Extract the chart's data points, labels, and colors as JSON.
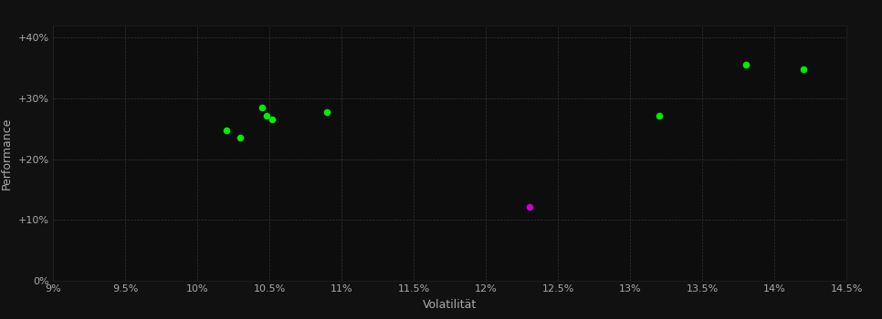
{
  "background_color": "#111111",
  "plot_bg_color": "#0d0d0d",
  "grid_color": "#333333",
  "text_color": "#aaaaaa",
  "xlabel": "Volatilität",
  "ylabel": "Performance",
  "xlim": [
    0.09,
    0.145
  ],
  "ylim": [
    0.0,
    0.42
  ],
  "xticks": [
    0.09,
    0.095,
    0.1,
    0.105,
    0.11,
    0.115,
    0.12,
    0.125,
    0.13,
    0.135,
    0.14,
    0.145
  ],
  "yticks": [
    0.0,
    0.1,
    0.2,
    0.3,
    0.4
  ],
  "ytick_labels": [
    "0%",
    "+10%",
    "+20%",
    "+30%",
    "+40%"
  ],
  "green_points": [
    [
      0.102,
      0.247
    ],
    [
      0.103,
      0.236
    ],
    [
      0.1045,
      0.285
    ],
    [
      0.1048,
      0.272
    ],
    [
      0.1052,
      0.265
    ],
    [
      0.109,
      0.278
    ],
    [
      0.132,
      0.272
    ],
    [
      0.138,
      0.355
    ],
    [
      0.142,
      0.348
    ]
  ],
  "magenta_points": [
    [
      0.123,
      0.122
    ]
  ],
  "green_color": "#00ee00",
  "magenta_color": "#cc00cc",
  "marker_size": 30,
  "font_size_ticks": 8,
  "font_size_labels": 9
}
